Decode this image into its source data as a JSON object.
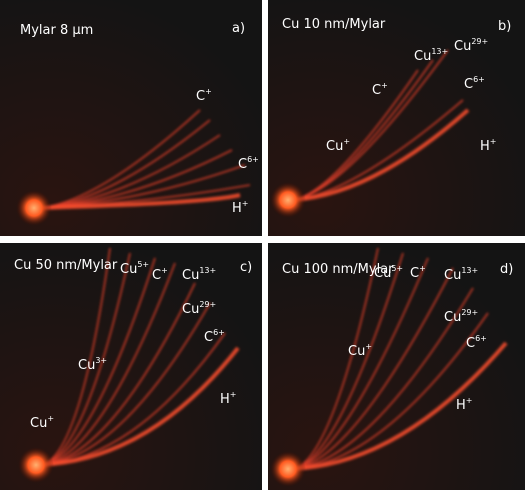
{
  "panels": [
    {
      "title": "Mylar 8 µm",
      "letter": "a)",
      "labels": [
        {
          "ion": "C",
          "charge": "+"
        },
        {
          "ion": "C",
          "charge": "6+"
        },
        {
          "ion": "H",
          "charge": "+"
        }
      ]
    },
    {
      "title": "Cu 10 nm/Mylar",
      "letter": "b)",
      "labels": [
        {
          "ion": "Cu",
          "charge": "13+"
        },
        {
          "ion": "Cu",
          "charge": "29+"
        },
        {
          "ion": "C",
          "charge": "+"
        },
        {
          "ion": "C",
          "charge": "6+"
        },
        {
          "ion": "Cu",
          "charge": "+"
        },
        {
          "ion": "H",
          "charge": "+"
        }
      ]
    },
    {
      "title": "Cu 50 nm/Mylar",
      "letter": "c)",
      "labels": [
        {
          "ion": "Cu",
          "charge": "5+"
        },
        {
          "ion": "C",
          "charge": "+"
        },
        {
          "ion": "Cu",
          "charge": "13+"
        },
        {
          "ion": "Cu",
          "charge": "29+"
        },
        {
          "ion": "C",
          "charge": "6+"
        },
        {
          "ion": "Cu",
          "charge": "3+"
        },
        {
          "ion": "H",
          "charge": "+"
        },
        {
          "ion": "Cu",
          "charge": "+"
        }
      ]
    },
    {
      "title": "Cu 100 nm/Mylar",
      "letter": "d)",
      "labels": [
        {
          "ion": "Cu",
          "charge": "5+"
        },
        {
          "ion": "C",
          "charge": "+"
        },
        {
          "ion": "Cu",
          "charge": "13+"
        },
        {
          "ion": "Cu",
          "charge": "29+"
        },
        {
          "ion": "C",
          "charge": "6+"
        },
        {
          "ion": "Cu",
          "charge": "+"
        },
        {
          "ion": "H",
          "charge": "+"
        }
      ]
    }
  ]
}
